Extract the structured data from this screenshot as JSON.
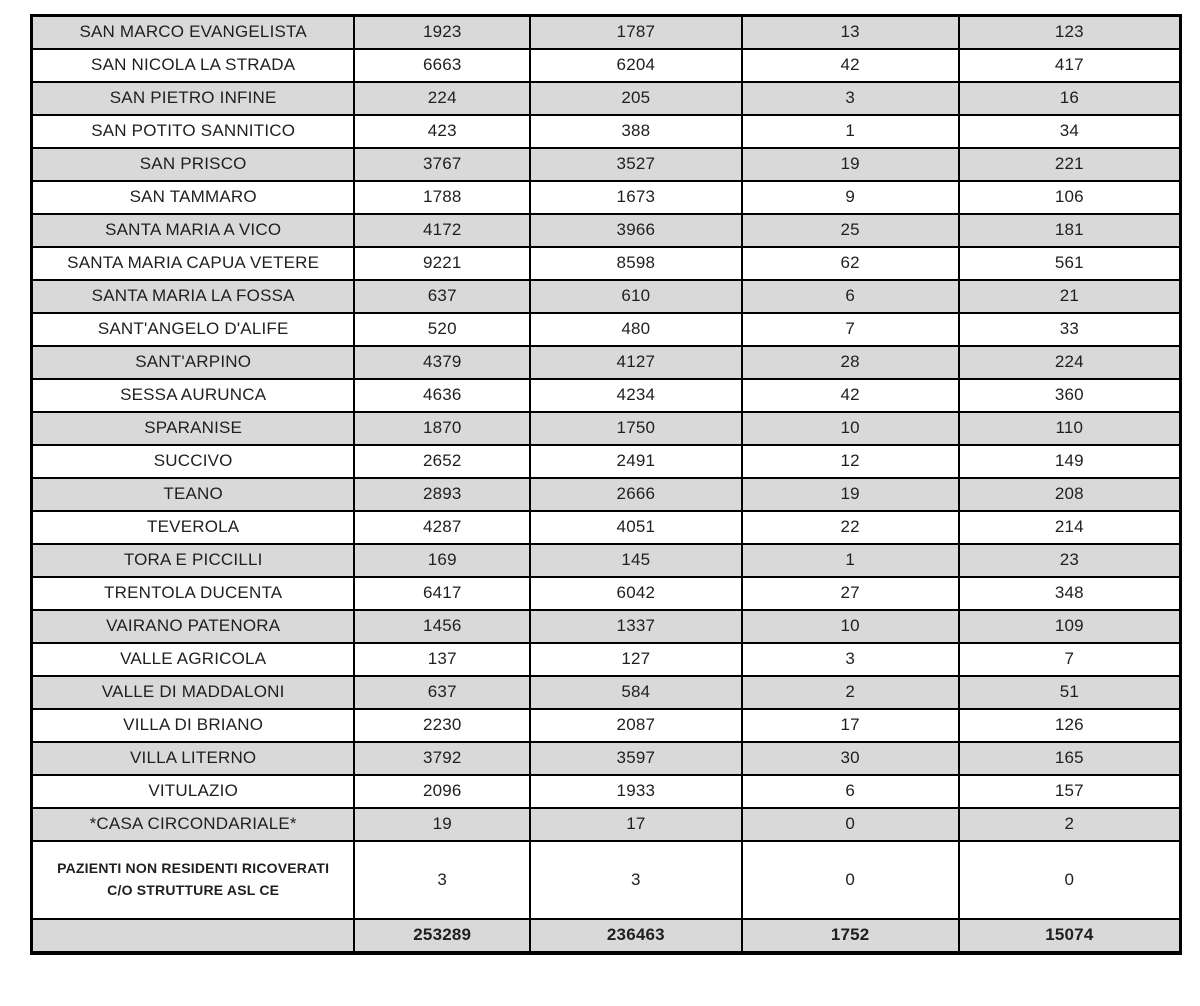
{
  "theme": {
    "border_color": "#000000",
    "shaded_row_color": "#d9d9d9",
    "text_color": "#1f1f1f",
    "page_background": "#ffffff"
  },
  "table": {
    "rows": [
      {
        "label": "SAN MARCO EVANGELISTA",
        "values": [
          "1923",
          "1787",
          "13",
          "123"
        ]
      },
      {
        "label": "SAN NICOLA LA STRADA",
        "values": [
          "6663",
          "6204",
          "42",
          "417"
        ]
      },
      {
        "label": "SAN PIETRO INFINE",
        "values": [
          "224",
          "205",
          "3",
          "16"
        ]
      },
      {
        "label": "SAN POTITO SANNITICO",
        "values": [
          "423",
          "388",
          "1",
          "34"
        ]
      },
      {
        "label": "SAN PRISCO",
        "values": [
          "3767",
          "3527",
          "19",
          "221"
        ]
      },
      {
        "label": "SAN TAMMARO",
        "values": [
          "1788",
          "1673",
          "9",
          "106"
        ]
      },
      {
        "label": "SANTA MARIA A VICO",
        "values": [
          "4172",
          "3966",
          "25",
          "181"
        ]
      },
      {
        "label": "SANTA MARIA CAPUA VETERE",
        "values": [
          "9221",
          "8598",
          "62",
          "561"
        ]
      },
      {
        "label": "SANTA MARIA LA FOSSA",
        "values": [
          "637",
          "610",
          "6",
          "21"
        ]
      },
      {
        "label": "SANT'ANGELO D'ALIFE",
        "values": [
          "520",
          "480",
          "7",
          "33"
        ]
      },
      {
        "label": "SANT'ARPINO",
        "values": [
          "4379",
          "4127",
          "28",
          "224"
        ]
      },
      {
        "label": "SESSA AURUNCA",
        "values": [
          "4636",
          "4234",
          "42",
          "360"
        ]
      },
      {
        "label": "SPARANISE",
        "values": [
          "1870",
          "1750",
          "10",
          "110"
        ]
      },
      {
        "label": "SUCCIVO",
        "values": [
          "2652",
          "2491",
          "12",
          "149"
        ]
      },
      {
        "label": "TEANO",
        "values": [
          "2893",
          "2666",
          "19",
          "208"
        ]
      },
      {
        "label": "TEVEROLA",
        "values": [
          "4287",
          "4051",
          "22",
          "214"
        ]
      },
      {
        "label": "TORA E PICCILLI",
        "values": [
          "169",
          "145",
          "1",
          "23"
        ]
      },
      {
        "label": "TRENTOLA DUCENTA",
        "values": [
          "6417",
          "6042",
          "27",
          "348"
        ]
      },
      {
        "label": "VAIRANO PATENORA",
        "values": [
          "1456",
          "1337",
          "10",
          "109"
        ]
      },
      {
        "label": "VALLE AGRICOLA",
        "values": [
          "137",
          "127",
          "3",
          "7"
        ]
      },
      {
        "label": "VALLE DI MADDALONI",
        "values": [
          "637",
          "584",
          "2",
          "51"
        ]
      },
      {
        "label": "VILLA DI BRIANO",
        "values": [
          "2230",
          "2087",
          "17",
          "126"
        ]
      },
      {
        "label": "VILLA LITERNO",
        "values": [
          "3792",
          "3597",
          "30",
          "165"
        ]
      },
      {
        "label": "VITULAZIO",
        "values": [
          "2096",
          "1933",
          "6",
          "157"
        ]
      },
      {
        "label": "*CASA CIRCONDARIALE*",
        "values": [
          "19",
          "17",
          "0",
          "2"
        ]
      },
      {
        "label": "PAZIENTI NON RESIDENTI RICOVERATI C/O STRUTTURE ASL CE",
        "values": [
          "3",
          "3",
          "0",
          "0"
        ],
        "multiline": true
      }
    ],
    "total_row": {
      "label": "",
      "values": [
        "253289",
        "236463",
        "1752",
        "15074"
      ]
    }
  }
}
